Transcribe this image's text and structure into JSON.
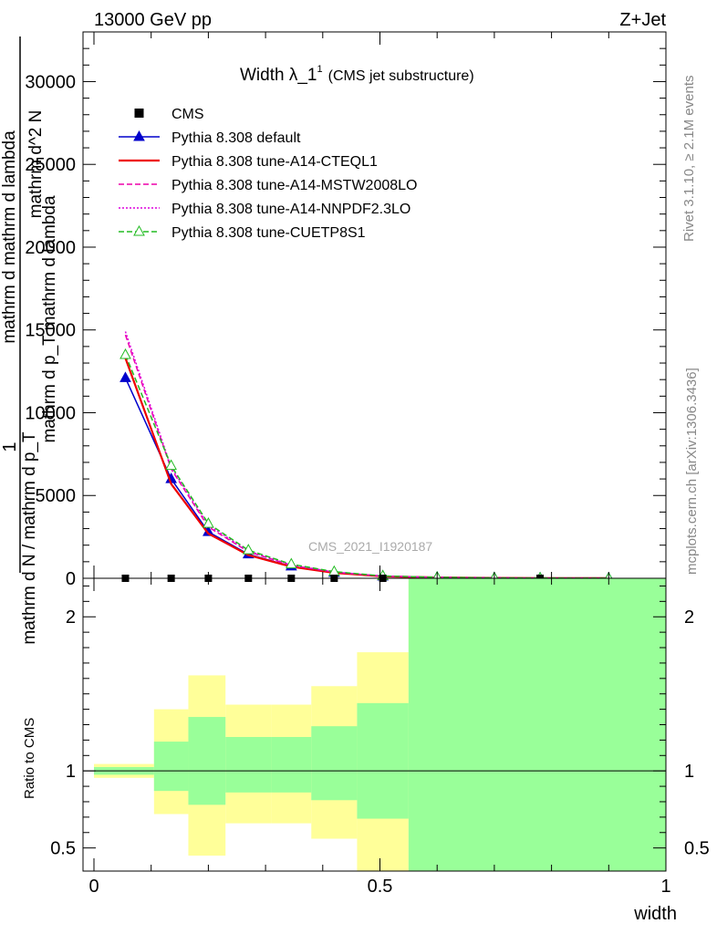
{
  "header": {
    "left": "13000 GeV pp",
    "right": "Z+Jet"
  },
  "side": {
    "rivet": "Rivet 3.1.10, ≥ 2.1M events",
    "mcplots": "mcplots.cern.ch [arXiv:1306.3436]"
  },
  "chart_data": [
    {
      "type": "line",
      "title": "Width λ_1",
      "title_sup": "1",
      "subtitle": "(CMS jet substructure)",
      "watermark": "CMS_2021_I1920187",
      "ylabel_lines": [
        "1",
        "mathrm d N / mathrm d p_T",
        "mathrm d^2 N",
        "mathrm d p_T mathrm d lambda",
        "mathrm d mathrm d lambda"
      ],
      "xlim": [
        0,
        1
      ],
      "ylim": [
        0,
        33000
      ],
      "yticks": [
        0,
        5000,
        10000,
        15000,
        20000,
        25000,
        30000
      ],
      "ytick_labels": [
        "0",
        "5000",
        "10000",
        "15000",
        "20000",
        "25000",
        "30000"
      ],
      "legend_position": "top-left",
      "data_name": "CMS",
      "data_x": [
        0.055,
        0.135,
        0.2,
        0.27,
        0.345,
        0.42,
        0.505,
        0.78
      ],
      "data_y": [
        0,
        0,
        0,
        0,
        0,
        0,
        0,
        0
      ],
      "series": [
        {
          "name": "Pythia 8.308 default",
          "color": "#0000cc",
          "style": "solid",
          "marker": "triangle-filled",
          "x": [
            0.055,
            0.135,
            0.2,
            0.27,
            0.345,
            0.42,
            0.505,
            0.6,
            0.7,
            0.78,
            0.9
          ],
          "y": [
            12100,
            6000,
            2800,
            1450,
            720,
            340,
            120,
            50,
            20,
            10,
            5
          ]
        },
        {
          "name": "Pythia 8.308 tune-A14-CTEQL1",
          "color": "#ee0000",
          "style": "solid",
          "marker": "none",
          "x": [
            0.055,
            0.135,
            0.2,
            0.27,
            0.345,
            0.42,
            0.505,
            0.6,
            0.7,
            0.78,
            0.9
          ],
          "y": [
            13300,
            5700,
            2700,
            1400,
            700,
            330,
            115,
            50,
            20,
            10,
            5
          ]
        },
        {
          "name": "Pythia 8.308 tune-A14-MSTW2008LO",
          "color": "#ee00aa",
          "style": "dashed",
          "marker": "none",
          "x": [
            0.055,
            0.135,
            0.2,
            0.27,
            0.345,
            0.42,
            0.505,
            0.6,
            0.7,
            0.78,
            0.9
          ],
          "y": [
            14700,
            6600,
            3100,
            1600,
            780,
            370,
            130,
            55,
            22,
            10,
            5
          ]
        },
        {
          "name": "Pythia 8.308 tune-A14-NNPDF2.3LO",
          "color": "#dd00dd",
          "style": "dotted",
          "marker": "none",
          "x": [
            0.055,
            0.135,
            0.2,
            0.27,
            0.345,
            0.42,
            0.505,
            0.6,
            0.7,
            0.78,
            0.9
          ],
          "y": [
            14900,
            6700,
            3200,
            1650,
            800,
            380,
            135,
            55,
            22,
            10,
            5
          ]
        },
        {
          "name": "Pythia 8.308 tune-CUETP8S1",
          "color": "#22bb22",
          "style": "dashed",
          "marker": "triangle-open",
          "x": [
            0.055,
            0.135,
            0.2,
            0.27,
            0.345,
            0.42,
            0.505,
            0.6,
            0.7,
            0.78,
            0.9
          ],
          "y": [
            13500,
            6800,
            3300,
            1700,
            850,
            400,
            140,
            60,
            25,
            12,
            6
          ]
        }
      ]
    },
    {
      "type": "area",
      "ylabel": "Ratio to CMS",
      "xlabel": "width",
      "xlim": [
        0,
        1
      ],
      "ylim": [
        0.35,
        2.25
      ],
      "xticks": [
        0,
        0.5,
        1
      ],
      "xtick_labels": [
        "0",
        "0.5",
        "1"
      ],
      "yticks": [
        0.5,
        1,
        2
      ],
      "ytick_labels": [
        "0.5",
        "1",
        "2"
      ],
      "reference": 1,
      "bands": [
        {
          "x0": 0.0,
          "x1": 0.105,
          "inner": [
            0.975,
            1.025
          ],
          "outer": [
            0.955,
            1.045
          ]
        },
        {
          "x0": 0.105,
          "x1": 0.165,
          "inner": [
            0.87,
            1.19
          ],
          "outer": [
            0.72,
            1.4
          ]
        },
        {
          "x0": 0.165,
          "x1": 0.23,
          "inner": [
            0.78,
            1.35
          ],
          "outer": [
            0.45,
            1.62
          ]
        },
        {
          "x0": 0.23,
          "x1": 0.31,
          "inner": [
            0.86,
            1.22
          ],
          "outer": [
            0.66,
            1.43
          ]
        },
        {
          "x0": 0.31,
          "x1": 0.38,
          "inner": [
            0.86,
            1.22
          ],
          "outer": [
            0.66,
            1.43
          ]
        },
        {
          "x0": 0.38,
          "x1": 0.46,
          "inner": [
            0.81,
            1.29
          ],
          "outer": [
            0.56,
            1.55
          ]
        },
        {
          "x0": 0.46,
          "x1": 0.55,
          "inner": [
            0.69,
            1.44
          ],
          "outer": [
            0.35,
            1.77
          ]
        },
        {
          "x0": 0.55,
          "x1": 1.0,
          "inner": [
            0.35,
            2.25
          ],
          "outer": [
            0.35,
            2.25
          ]
        }
      ],
      "inner_color": "#99ff99",
      "outer_color": "#ffff99"
    }
  ]
}
